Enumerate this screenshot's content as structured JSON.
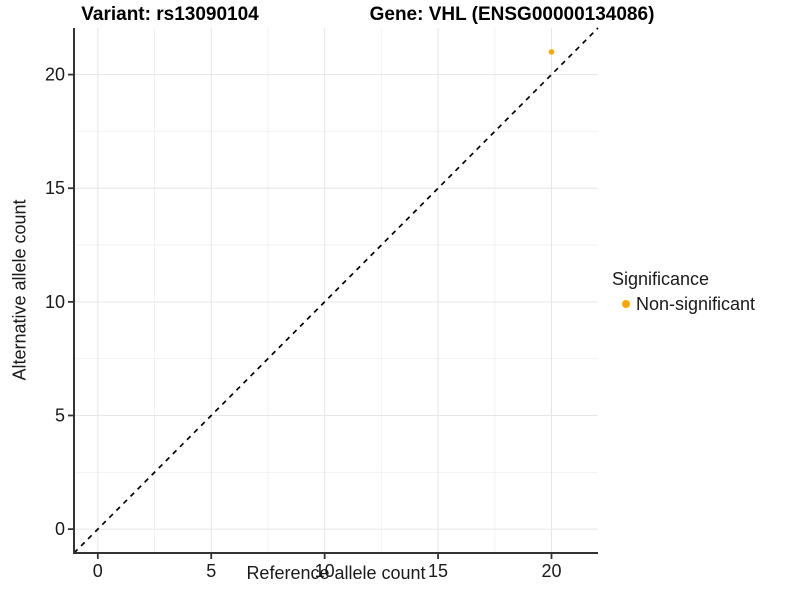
{
  "titles": {
    "variant": "Variant: rs13090104",
    "gene": "Gene: VHL (ENSG00000134086)"
  },
  "axes": {
    "x_label": "Reference allele count",
    "y_label": "Alternative allele count"
  },
  "legend": {
    "title": "Significance",
    "items": [
      {
        "label": "Non-significant",
        "color": "#FFA500"
      }
    ]
  },
  "colors": {
    "background": "#FFFFFF",
    "grid_major": "#E6E6E6",
    "grid_minor": "#F2F2F2",
    "axis_line": "#333333",
    "tick_text": "#1A1A1A",
    "abline": "#000000",
    "point": "#FFA500"
  },
  "chart_data": {
    "type": "scatter",
    "title": "Variant: rs13090104    Gene: VHL (ENSG00000134086)",
    "xlabel": "Reference allele count",
    "ylabel": "Alternative allele count",
    "xlim": [
      -1.05,
      22.05
    ],
    "ylim": [
      -1.05,
      22.05
    ],
    "x_ticks": [
      0,
      5,
      10,
      15,
      20
    ],
    "y_ticks": [
      0,
      5,
      10,
      15,
      20
    ],
    "x_minor_ticks": [
      2.5,
      7.5,
      12.5,
      17.5
    ],
    "y_minor_ticks": [
      2.5,
      7.5,
      12.5,
      17.5
    ],
    "grid": "on",
    "legend_position": "right",
    "abline": {
      "slope": 1,
      "intercept": 0,
      "linestyle": "dashed"
    },
    "series": [
      {
        "name": "Non-significant",
        "color": "#FFA500",
        "points": [
          {
            "x": 20,
            "y": 21
          }
        ]
      }
    ]
  }
}
